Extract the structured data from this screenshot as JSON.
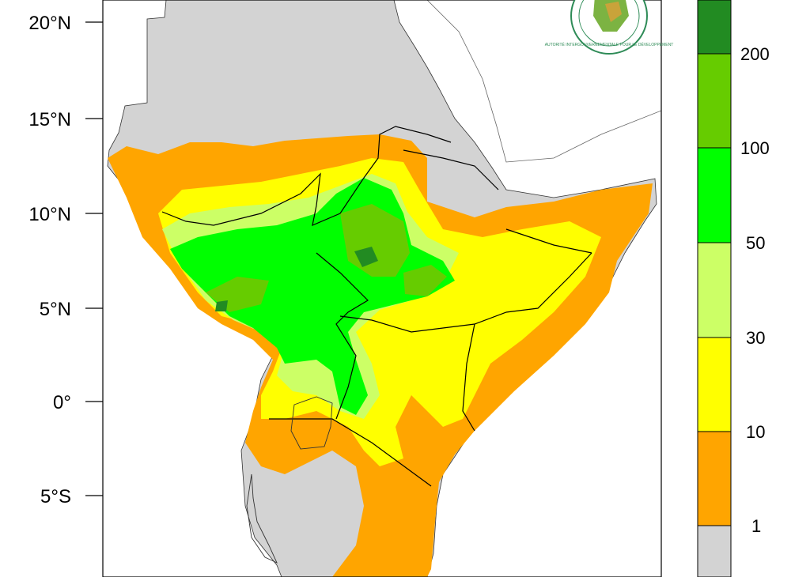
{
  "map": {
    "latitude_labels": [
      "20°N",
      "15°N",
      "10°N",
      "5°N",
      "0°",
      "5°S"
    ],
    "colors": {
      "land_no_data": "#d3d3d3",
      "ocean": "#ffffff",
      "border": "#000000"
    }
  },
  "legend": {
    "unit": "",
    "bins": [
      {
        "range": "< 1",
        "color": "#d3d3d3"
      },
      {
        "range": "1-10",
        "color": "#ffa500"
      },
      {
        "range": "10-30",
        "color": "#ffff00"
      },
      {
        "range": "30-50",
        "color": "#ccff66"
      },
      {
        "range": "50-100",
        "color": "#00ff00"
      },
      {
        "range": "100-200",
        "color": "#66cc00"
      },
      {
        "range": "> 200",
        "color": "#228b22"
      }
    ],
    "tick_labels": [
      "1",
      "10",
      "30",
      "50",
      "100",
      "200"
    ]
  },
  "logo": {
    "text": "AUTORITÉ INTERGOUVERNEMENTALE POUR LE DÉVELOPPEMENT",
    "icon": "igad-emblem-icon"
  }
}
